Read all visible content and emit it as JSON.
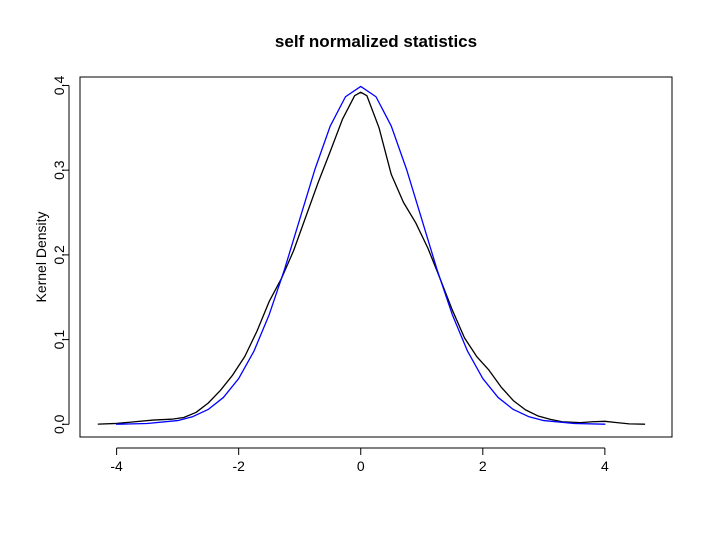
{
  "chart_data": {
    "type": "line",
    "title": "self normalized statistics",
    "xlabel": "",
    "ylabel": "Kernel Density",
    "xlim": [
      -4.6,
      5.1
    ],
    "ylim": [
      -0.015,
      0.41
    ],
    "x_ticks": [
      -4,
      -2,
      0,
      2,
      4
    ],
    "x_tick_labels": [
      "-4",
      "-2",
      "0",
      "2",
      "4"
    ],
    "y_ticks": [
      0.0,
      0.1,
      0.2,
      0.3,
      0.4
    ],
    "y_tick_labels": [
      "0.0",
      "0.1",
      "0.2",
      "0.3",
      "0.4"
    ],
    "grid": false,
    "legend": "none",
    "series": [
      {
        "color": "#000000",
        "points": [
          [
            -4.3,
            0.0002
          ],
          [
            -4.0,
            0.001
          ],
          [
            -3.7,
            0.003
          ],
          [
            -3.4,
            0.005
          ],
          [
            -3.1,
            0.006
          ],
          [
            -2.9,
            0.008
          ],
          [
            -2.7,
            0.014
          ],
          [
            -2.5,
            0.025
          ],
          [
            -2.3,
            0.04
          ],
          [
            -2.1,
            0.058
          ],
          [
            -1.9,
            0.08
          ],
          [
            -1.7,
            0.11
          ],
          [
            -1.5,
            0.145
          ],
          [
            -1.3,
            0.172
          ],
          [
            -1.1,
            0.205
          ],
          [
            -0.9,
            0.245
          ],
          [
            -0.7,
            0.285
          ],
          [
            -0.5,
            0.322
          ],
          [
            -0.3,
            0.36
          ],
          [
            -0.1,
            0.388
          ],
          [
            0.0,
            0.392
          ],
          [
            0.1,
            0.388
          ],
          [
            0.3,
            0.35
          ],
          [
            0.5,
            0.295
          ],
          [
            0.7,
            0.262
          ],
          [
            0.9,
            0.238
          ],
          [
            1.1,
            0.208
          ],
          [
            1.3,
            0.172
          ],
          [
            1.5,
            0.135
          ],
          [
            1.7,
            0.102
          ],
          [
            1.9,
            0.08
          ],
          [
            2.1,
            0.064
          ],
          [
            2.3,
            0.044
          ],
          [
            2.5,
            0.028
          ],
          [
            2.7,
            0.017
          ],
          [
            2.9,
            0.01
          ],
          [
            3.1,
            0.006
          ],
          [
            3.3,
            0.003
          ],
          [
            3.6,
            0.002
          ],
          [
            3.8,
            0.003
          ],
          [
            4.0,
            0.0035
          ],
          [
            4.2,
            0.002
          ],
          [
            4.4,
            0.0005
          ],
          [
            4.65,
            0.0001
          ]
        ]
      },
      {
        "color": "#0000ff",
        "points": [
          [
            -4.0,
            0.0001
          ],
          [
            -3.5,
            0.0009
          ],
          [
            -3.0,
            0.0044
          ],
          [
            -2.75,
            0.0091
          ],
          [
            -2.5,
            0.0175
          ],
          [
            -2.25,
            0.0317
          ],
          [
            -2.0,
            0.054
          ],
          [
            -1.75,
            0.0863
          ],
          [
            -1.5,
            0.1295
          ],
          [
            -1.25,
            0.1826
          ],
          [
            -1.0,
            0.242
          ],
          [
            -0.75,
            0.3011
          ],
          [
            -0.5,
            0.3521
          ],
          [
            -0.25,
            0.3867
          ],
          [
            0.0,
            0.3989
          ],
          [
            0.25,
            0.3867
          ],
          [
            0.5,
            0.3521
          ],
          [
            0.75,
            0.3011
          ],
          [
            1.0,
            0.242
          ],
          [
            1.25,
            0.1826
          ],
          [
            1.5,
            0.1295
          ],
          [
            1.75,
            0.0863
          ],
          [
            2.0,
            0.054
          ],
          [
            2.25,
            0.0317
          ],
          [
            2.5,
            0.0175
          ],
          [
            2.75,
            0.0091
          ],
          [
            3.0,
            0.0044
          ],
          [
            3.5,
            0.0009
          ],
          [
            4.0,
            0.0001
          ]
        ]
      }
    ]
  }
}
